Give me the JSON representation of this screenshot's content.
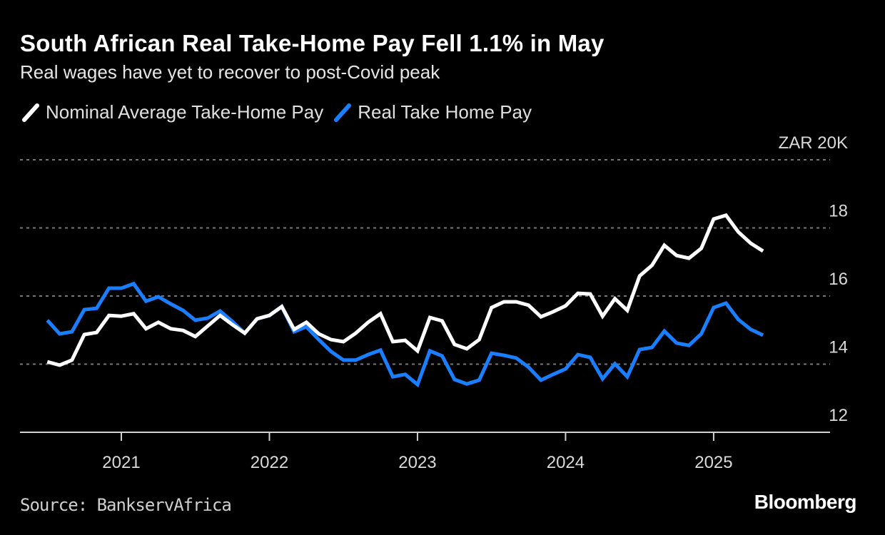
{
  "title": "South African Real Take-Home Pay Fell 1.1% in May",
  "subtitle": "Real wages have yet to recover to post-Covid peak",
  "source": "Source: BankservAfrica",
  "logo": "Bloomberg",
  "chart_data": {
    "type": "line",
    "title": "South African Real Take-Home Pay Fell 1.1% in May",
    "subtitle": "Real wages have yet to recover to post-Covid peak",
    "ylabel": "ZAR",
    "ylim": [
      12,
      20
    ],
    "yticks": [
      12,
      14,
      16,
      18,
      20
    ],
    "ytick_labels": [
      "12",
      "14",
      "16",
      "18",
      "ZAR 20K"
    ],
    "xticks": [
      "2021",
      "2022",
      "2023",
      "2024",
      "2025"
    ],
    "grid": true,
    "legend_position": "top-left",
    "x_start": "2020-07",
    "x_end": "2025-05",
    "x_frequency": "monthly",
    "series": [
      {
        "name": "Nominal Average Take-Home Pay",
        "color": "#ffffff",
        "values": [
          14.07,
          13.97,
          14.12,
          14.87,
          14.93,
          15.43,
          15.41,
          15.48,
          15.04,
          15.23,
          15.04,
          14.99,
          14.81,
          15.12,
          15.43,
          15.16,
          14.91,
          15.33,
          15.43,
          15.69,
          15.02,
          15.23,
          14.89,
          14.72,
          14.66,
          14.91,
          15.23,
          15.48,
          14.66,
          14.7,
          14.39,
          15.37,
          15.27,
          14.58,
          14.45,
          14.72,
          15.66,
          15.83,
          15.83,
          15.73,
          15.39,
          15.54,
          15.71,
          16.08,
          16.06,
          15.41,
          15.92,
          15.58,
          16.59,
          16.9,
          17.49,
          17.19,
          17.11,
          17.4,
          18.26,
          18.37,
          17.88,
          17.55,
          17.32
        ]
      },
      {
        "name": "Real Take Home Pay",
        "color": "#1a7fff",
        "values": [
          15.29,
          14.89,
          14.95,
          15.6,
          15.64,
          16.23,
          16.23,
          16.36,
          15.85,
          15.98,
          15.77,
          15.58,
          15.29,
          15.35,
          15.56,
          15.25,
          14.91,
          15.33,
          15.43,
          15.69,
          14.95,
          15.1,
          14.72,
          14.37,
          14.12,
          14.12,
          14.28,
          14.41,
          13.63,
          13.7,
          13.4,
          14.39,
          14.24,
          13.55,
          13.42,
          13.53,
          14.32,
          14.26,
          14.18,
          13.91,
          13.53,
          13.7,
          13.86,
          14.28,
          14.2,
          13.57,
          14.01,
          13.63,
          14.43,
          14.49,
          14.97,
          14.62,
          14.55,
          14.89,
          15.66,
          15.79,
          15.31,
          15.02,
          14.85
        ]
      }
    ]
  }
}
